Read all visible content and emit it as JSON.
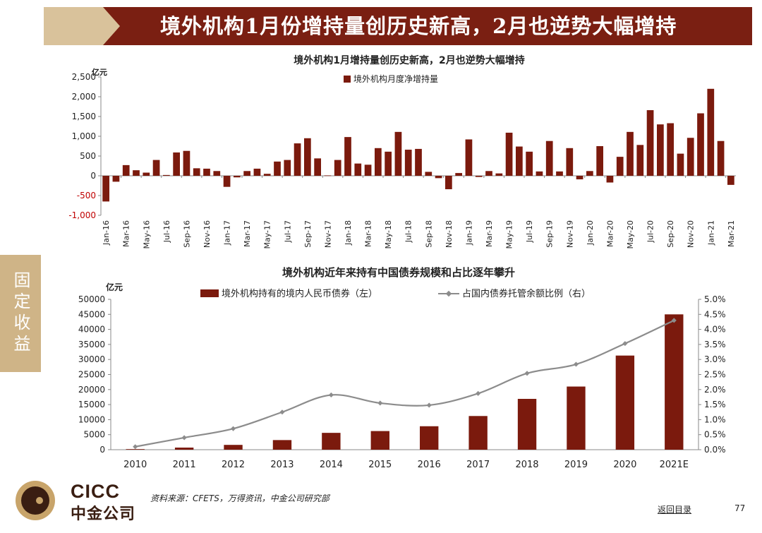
{
  "banner": {
    "title": "境外机构1月份增持量创历史新高，2月也逆势大幅增持"
  },
  "side_tab": {
    "label": "固定收益"
  },
  "colors": {
    "bar": "#7b1a0d",
    "line": "#8c8c8c",
    "banner": "#7a1f12",
    "gold": "#cfb487",
    "neg_tick": "#c00000"
  },
  "chart_data": [
    {
      "type": "bar",
      "title": "境外机构1月增持量创历史新高，2月也逆势大幅增持",
      "unit_label": "亿元",
      "legend": "境外机构月度净增持量",
      "legend_position": "top-center",
      "ylim": [
        -1000,
        2500
      ],
      "yticks": [
        "2,500",
        "2,000",
        "1,500",
        "1,000",
        "500",
        "0",
        "-500",
        "-1,000"
      ],
      "x_tick_labels": [
        "Jan-16",
        "Mar-16",
        "May-16",
        "Jul-16",
        "Sep-16",
        "Nov-16",
        "Jan-17",
        "Mar-17",
        "May-17",
        "Jul-17",
        "Sep-17",
        "Nov-17",
        "Jan-18",
        "Mar-18",
        "May-18",
        "Jul-18",
        "Sep-18",
        "Nov-18",
        "Jan-19",
        "Mar-19",
        "May-19",
        "Jul-19",
        "Sep-19",
        "Nov-19",
        "Jan-20",
        "Mar-20",
        "May-20",
        "Jul-20",
        "Sep-20",
        "Nov-20",
        "Jan-21",
        "Mar-21"
      ],
      "series": [
        {
          "name": "境外机构月度净增持量",
          "values": [
            -650,
            -150,
            270,
            140,
            80,
            400,
            20,
            590,
            630,
            190,
            180,
            120,
            -280,
            -40,
            120,
            180,
            50,
            360,
            400,
            820,
            950,
            440,
            10,
            400,
            980,
            310,
            280,
            700,
            610,
            1110,
            660,
            680,
            100,
            -60,
            -340,
            70,
            920,
            -30,
            120,
            60,
            1090,
            740,
            610,
            110,
            880,
            110,
            700,
            -90,
            120,
            750,
            -170,
            480,
            1110,
            780,
            1660,
            1300,
            1330,
            560,
            960,
            1580,
            2200,
            880,
            -230
          ]
        }
      ]
    },
    {
      "type": "bar",
      "title": "境外机构近年来持有中国债券规模和占比逐年攀升",
      "unit_label": "亿元",
      "categories": [
        "2010",
        "2011",
        "2012",
        "2013",
        "2014",
        "2015",
        "2016",
        "2017",
        "2018",
        "2019",
        "2020",
        "2021E"
      ],
      "ylim_left": [
        0,
        50000
      ],
      "yticks_left": [
        "50000",
        "45000",
        "40000",
        "35000",
        "30000",
        "25000",
        "20000",
        "15000",
        "10000",
        "5000",
        "0"
      ],
      "ylim_right": [
        0,
        5.0
      ],
      "yticks_right": [
        "5.0%",
        "4.5%",
        "4.0%",
        "3.5%",
        "3.0%",
        "2.5%",
        "2.0%",
        "1.5%",
        "1.0%",
        "0.5%",
        "0.0%"
      ],
      "legend_position": "top-center",
      "series": [
        {
          "name": "境外机构持有的境内人民币债券（左）",
          "type": "bar",
          "values": [
            200,
            700,
            1600,
            3200,
            5600,
            6200,
            7800,
            11200,
            16900,
            21000,
            31300,
            45000
          ]
        },
        {
          "name": "占国内债券托管余额比例（右）",
          "type": "line",
          "values": [
            0.1,
            0.4,
            0.7,
            1.25,
            1.82,
            1.55,
            1.48,
            1.87,
            2.54,
            2.84,
            3.53,
            4.3
          ]
        }
      ]
    }
  ],
  "footer": {
    "logo_en": "CICC",
    "logo_cn": "中金公司",
    "source": "资料来源：CFETS，万得资讯，中金公司研究部",
    "back_link": "返回目录",
    "page_number": "77"
  }
}
